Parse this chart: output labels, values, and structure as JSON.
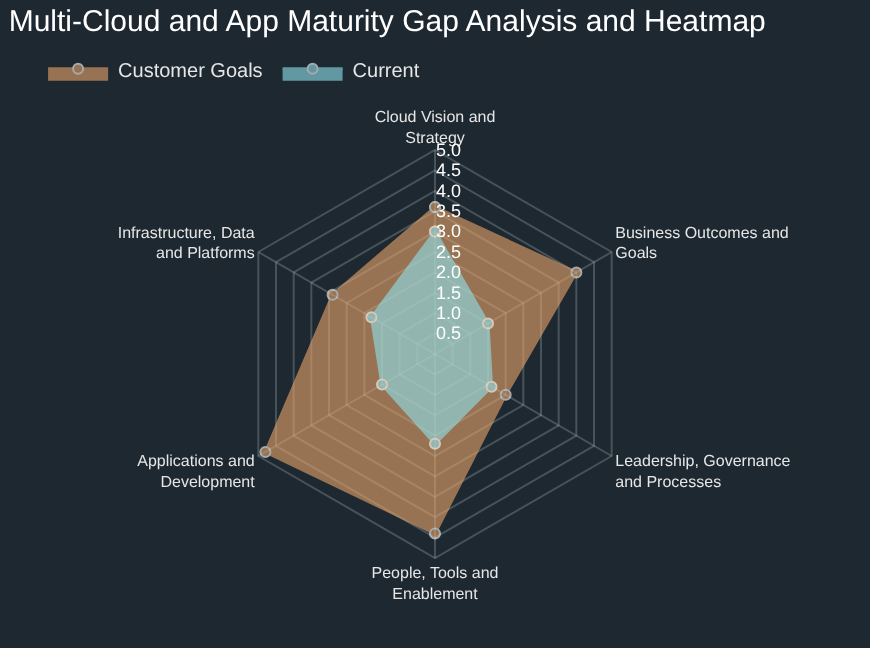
{
  "chart_data": {
    "type": "radar",
    "title": "Multi-Cloud and App Maturity Gap Analysis and Heatmap",
    "categories": [
      "Cloud Vision and Strategy",
      "Business Outcomes and Goals",
      "Leadership, Governance and Processes",
      "People, Tools and Enablement",
      "Applications and Development",
      "Infrastructure, Data and Platforms"
    ],
    "series": [
      {
        "name": "Customer Goals",
        "color": "#e8a66a",
        "values": [
          3.6,
          4.0,
          2.0,
          4.4,
          4.8,
          2.9
        ]
      },
      {
        "name": "Current",
        "color": "#8fe3ec",
        "values": [
          3.0,
          1.5,
          1.6,
          2.2,
          1.5,
          1.8
        ]
      }
    ],
    "ylim": [
      0,
      5
    ],
    "yticks": [
      0.5,
      {
        "value": 1,
        "label": "1.0"
      },
      1.5,
      {
        "value": 2,
        "label": "2.0"
      },
      2.5,
      {
        "value": 3,
        "label": "3.0"
      },
      3.5,
      {
        "value": 4,
        "label": "4.0"
      },
      4.5,
      {
        "value": 5,
        "label": "5.0"
      }
    ],
    "legend": "top left",
    "marker": "circle",
    "grid": true
  }
}
